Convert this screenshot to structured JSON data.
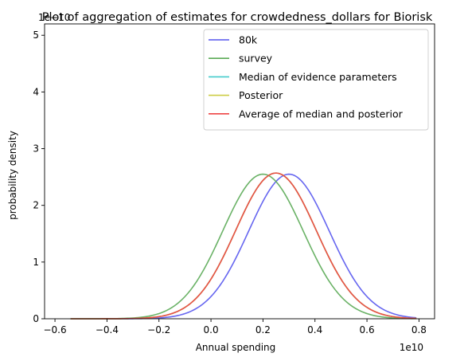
{
  "chart_data": {
    "type": "line",
    "title": "Plot of aggregation of estimates for crowdedness_dollars for Biorisk",
    "xlabel": "Annual spending",
    "ylabel": "probability density",
    "x_offset_label": "1e10",
    "y_offset_label": "1e−10",
    "xlim": [
      -6400000000.0,
      8600000000.0
    ],
    "ylim": [
      0,
      5.2e-10
    ],
    "x_ticks": [
      -6000000000.0,
      -4000000000.0,
      -2000000000.0,
      0,
      2000000000.0,
      4000000000.0,
      6000000000.0,
      8000000000.0
    ],
    "x_tick_labels": [
      "−0.6",
      "−0.4",
      "−0.2",
      "0.0",
      "0.2",
      "0.4",
      "0.6",
      "0.8"
    ],
    "y_ticks": [
      0,
      1e-10,
      2e-10,
      3e-10,
      4e-10,
      5e-10
    ],
    "y_tick_labels": [
      "0",
      "1",
      "2",
      "3",
      "4",
      "5"
    ],
    "x_range": [
      -5400000000.0,
      7900000000.0
    ],
    "grid": false,
    "legend_position": "top-right",
    "series": [
      {
        "name": "80k",
        "color": "#5555ee",
        "mean": 3000000000.0,
        "sd": 1550000000.0,
        "peak": 2.55e-10
      },
      {
        "name": "survey",
        "color": "#5aaa55",
        "mean": 2000000000.0,
        "sd": 1550000000.0,
        "peak": 2.55e-10
      },
      {
        "name": "Median of evidence parameters",
        "color": "#44cccc",
        "mean": 2500000000.0,
        "sd": 1550000000.0,
        "peak": 2.57e-10
      },
      {
        "name": "Posterior",
        "color": "#cccc44",
        "mean": 2500000000.0,
        "sd": 1550000000.0,
        "peak": 2.57e-10
      },
      {
        "name": "Average of median and posterior",
        "color": "#ee4444",
        "mean": 2500000000.0,
        "sd": 1550000000.0,
        "peak": 2.57e-10
      }
    ]
  }
}
